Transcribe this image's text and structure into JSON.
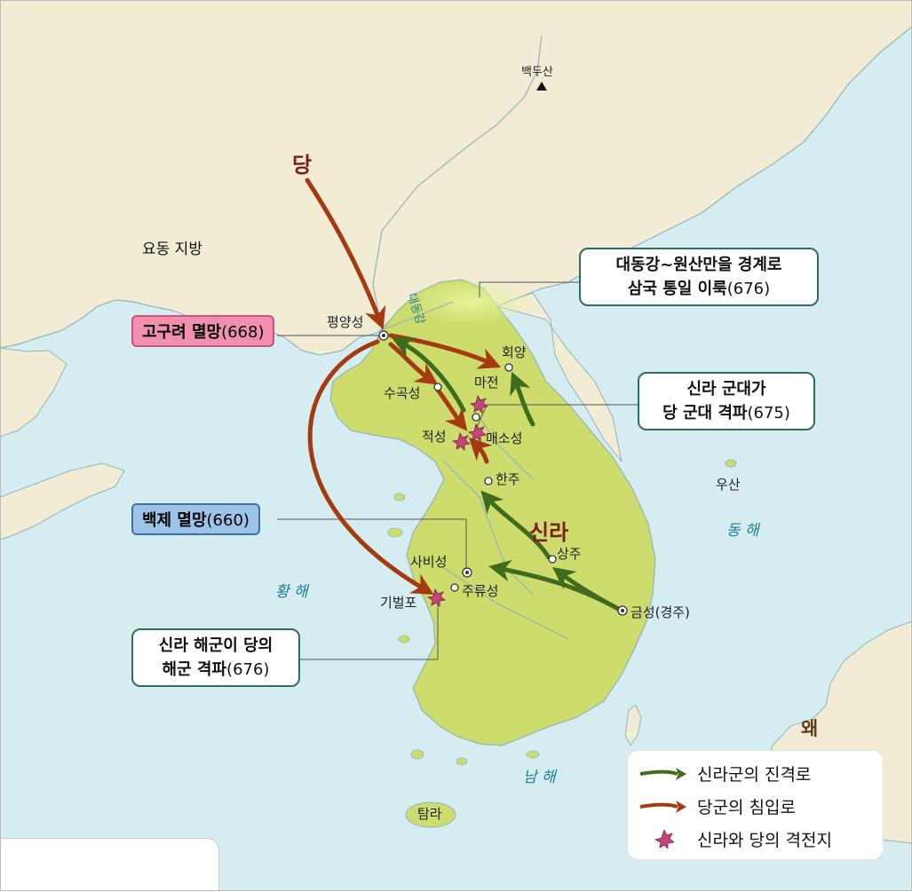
{
  "powers": {
    "tang": "당",
    "silla": "신라",
    "wae": "왜"
  },
  "regions": {
    "liaodong": "요동 지방"
  },
  "seas": {
    "yellow": "황 해",
    "east": "동 해",
    "south": "남 해"
  },
  "mountain": "백두산",
  "river": "대동강",
  "cities": {
    "pyongyang": "평양성",
    "suggokseong": "수곡성",
    "majeon": "마전",
    "hoeyang": "회양",
    "jeokseong": "적성",
    "maesoseong": "매소성",
    "hanju": "한주",
    "sabiseong": "사비성",
    "juryuseong": "주류성",
    "gibeolpo": "기벌포",
    "sangju": "상주",
    "geumseong": "금성(경주)",
    "usan": "우산",
    "tamna": "탐라"
  },
  "callouts": {
    "goguryeo": {
      "name": "고구려 멸망",
      "year": "(668)"
    },
    "baekje": {
      "name": "백제 멸망",
      "year": "(660)"
    },
    "border": {
      "line1": "대동강~원산만을 경계로",
      "line2": "삼국 통일 이룩",
      "year": "(676)"
    },
    "maesoseong_battle": {
      "line1": "신라 군대가",
      "line2": "당 군대 격파",
      "year": "(675)"
    },
    "gibeolpo_battle": {
      "line1": "신라 해군이 당의",
      "line2": "해군 격파",
      "year": "(676)"
    }
  },
  "legend": {
    "silla_route": "신라군의 진격로",
    "tang_route": "당군의 침입로",
    "battle": "신라와 당의 격전지"
  },
  "colors": {
    "sea": "#d5ecf0",
    "land": "#f1ecd3",
    "silla": "#cddc6c",
    "silla_arrow": "#3e6b1c",
    "tang_arrow": "#a33a10",
    "battle": "#c2467a",
    "goguryeo_box": "#f08fb0",
    "baekje_box": "#9cc3e8"
  }
}
